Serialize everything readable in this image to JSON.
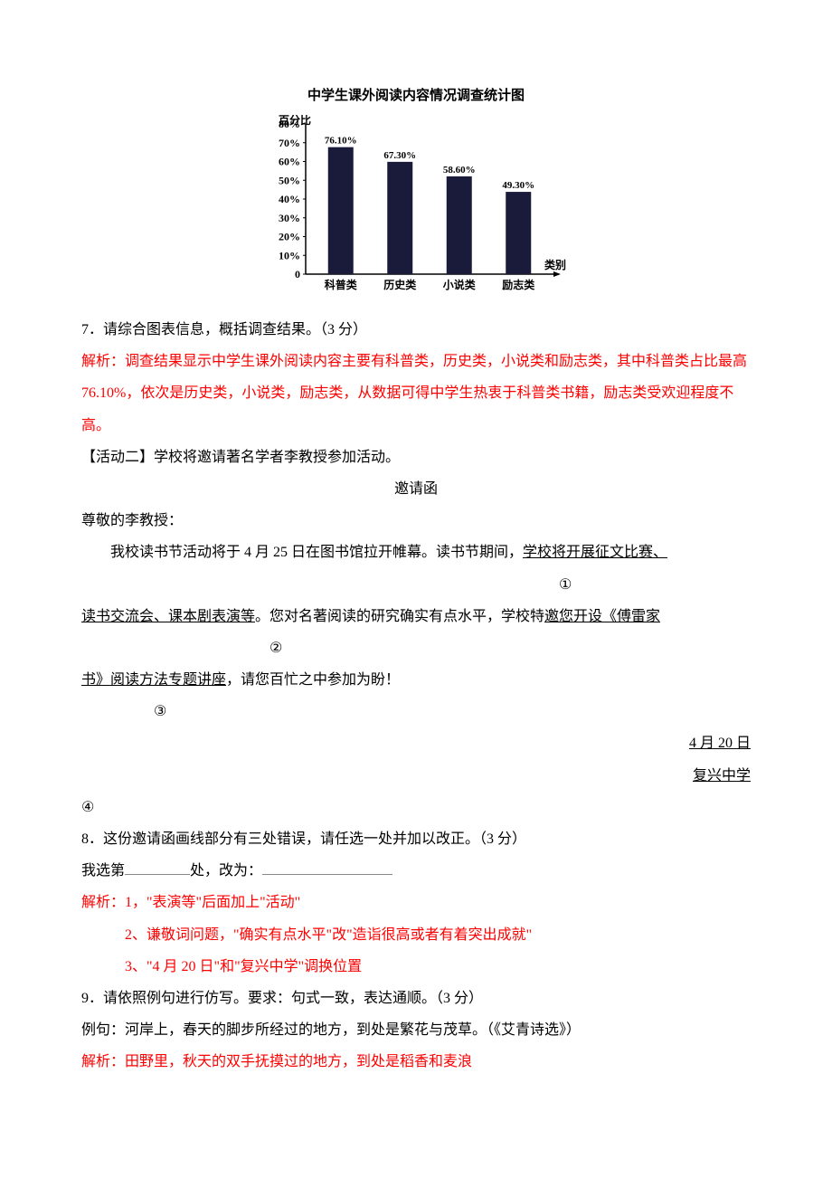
{
  "chart": {
    "type": "bar",
    "title": "中学生课外阅读内容情况调查统计图",
    "y_axis_label": "百分比",
    "x_axis_label": "类别",
    "categories": [
      "科普类",
      "历史类",
      "小说类",
      "励志类"
    ],
    "values": [
      76.1,
      67.3,
      58.6,
      49.3
    ],
    "value_labels": [
      "76.10%",
      "67.30%",
      "58.60%",
      "49.30%"
    ],
    "bar_color": "#1a1a3a",
    "y_ticks": [
      "0",
      "10%",
      "20%",
      "30%",
      "40%",
      "50%",
      "60%",
      "70%",
      "80%"
    ],
    "y_max": 90,
    "tick_font_size": 12,
    "label_font_size": 12,
    "axis_color": "#000000",
    "background_color": "#ffffff",
    "value_label_font_weight": "bold"
  },
  "q7": {
    "question": "7．请综合图表信息，概括调查结果。（3 分）",
    "answer": "解析：调查结果显示中学生课外阅读内容主要有科普类，历史类，小说类和励志类，其中科普类占比最高76.10%，依次是历史类，小说类，励志类，从数据可得中学生热衷于科普类书籍，励志类受欢迎程度不高。"
  },
  "activity2_heading": "【活动二】学校将邀请著名学者李教授参加活动。",
  "invite": {
    "title": "邀请函",
    "salutation": "尊敬的李教授：",
    "body_prefix": "我校读书节活动将于 4 月 25 日在图书馆拉开帷幕。读书节期间，",
    "underline1": "学校将开展征文比赛、",
    "marker1": "①",
    "underline2_a": "读书交流会、课本剧表演等",
    "mid1": "。您对名著阅读的研究确实有点水平，学校特",
    "underline2_b": "邀您开设《傅雷家",
    "marker2": "②",
    "underline3": "书》阅读方法专题讲座",
    "body_suffix": "，请您百忙之中参加为盼！",
    "marker3": "③",
    "date": "4 月 20 日",
    "signature": "复兴中学",
    "marker4": "④"
  },
  "q8": {
    "question": "8．这份邀请函画线部分有三处错误，请任选一处并加以改正。（3 分）",
    "choice_prefix": "我选第",
    "choice_mid": "处，改为：",
    "ans1": "解析：1，\"表演等\"后面加上\"活动\"",
    "ans2": "2、谦敬词问题，\"确实有点水平\"改\"造诣很高或者有着突出成就\"",
    "ans3": "3、\"4 月 20 日\"和\"复兴中学\"调换位置"
  },
  "q9": {
    "question": "9．请依照例句进行仿写。要求：句式一致，表达通顺。（3 分）",
    "example": "例句：河岸上，春天的脚步所经过的地方，到处是繁花与茂草。（《艾青诗选》）",
    "answer": "解析：田野里，秋天的双手抚摸过的地方，到处是稻香和麦浪"
  }
}
